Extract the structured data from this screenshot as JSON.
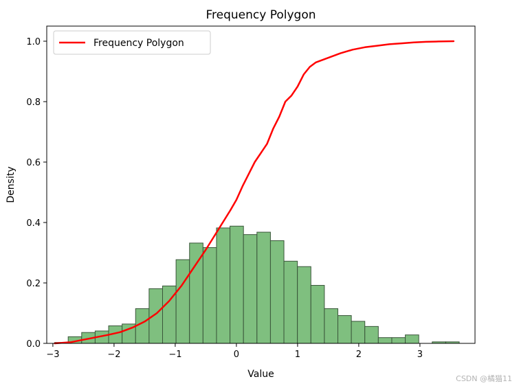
{
  "chart_data": {
    "type": "bar",
    "title": "Frequency Polygon",
    "xlabel": "Value",
    "ylabel": "Density",
    "xlim": [
      -3.1,
      3.9
    ],
    "ylim": [
      0,
      1.05
    ],
    "xticks": [
      -3,
      -2,
      -1,
      0,
      1,
      2,
      3
    ],
    "xtick_labels": [
      "−3",
      "−2",
      "−1",
      "0",
      "1",
      "2",
      "3"
    ],
    "yticks": [
      0.0,
      0.2,
      0.4,
      0.6,
      0.8,
      1.0
    ],
    "ytick_labels": [
      "0.0",
      "0.2",
      "0.4",
      "0.6",
      "0.8",
      "1.0"
    ],
    "grid": false,
    "legend": {
      "placement": "upper-left",
      "entries": [
        "Frequency Polygon"
      ]
    },
    "histogram": {
      "name": "",
      "color": "#7fbf7f",
      "edge_color": "#3a553a",
      "bin_width": 0.2204,
      "bin_starts": [
        -2.97,
        -2.7496,
        -2.5292,
        -2.3088,
        -2.0884,
        -1.868,
        -1.6476,
        -1.4272,
        -1.2068,
        -0.9864,
        -0.766,
        -0.5456,
        -0.3252,
        -0.1048,
        0.1156,
        0.336,
        0.5564,
        0.7768,
        0.9972,
        1.2176,
        1.438,
        1.6584,
        1.8788,
        2.0992,
        2.3196,
        2.54,
        2.7604,
        2.9808,
        3.2012,
        3.4216
      ],
      "values": [
        0.003,
        0.022,
        0.036,
        0.041,
        0.058,
        0.064,
        0.115,
        0.181,
        0.19,
        0.277,
        0.332,
        0.317,
        0.382,
        0.388,
        0.36,
        0.368,
        0.34,
        0.272,
        0.254,
        0.192,
        0.115,
        0.092,
        0.073,
        0.056,
        0.019,
        0.019,
        0.028,
        0.0,
        0.005,
        0.005
      ]
    },
    "series": [
      {
        "name": "Frequency Polygon",
        "type": "line",
        "color": "#ff0000",
        "x": [
          -2.97,
          -2.7,
          -2.5,
          -2.3,
          -2.1,
          -1.9,
          -1.7,
          -1.5,
          -1.3,
          -1.1,
          -0.9,
          -0.7,
          -0.5,
          -0.3,
          -0.1,
          0.0,
          0.1,
          0.3,
          0.5,
          0.6,
          0.7,
          0.8,
          0.9,
          1.0,
          1.1,
          1.2,
          1.3,
          1.5,
          1.7,
          1.9,
          2.1,
          2.3,
          2.5,
          2.7,
          2.9,
          3.1,
          3.3,
          3.55
        ],
        "values": [
          0.0,
          0.004,
          0.012,
          0.02,
          0.028,
          0.037,
          0.052,
          0.072,
          0.1,
          0.14,
          0.19,
          0.25,
          0.31,
          0.375,
          0.44,
          0.475,
          0.52,
          0.6,
          0.66,
          0.71,
          0.75,
          0.8,
          0.82,
          0.85,
          0.89,
          0.915,
          0.93,
          0.945,
          0.96,
          0.972,
          0.98,
          0.985,
          0.99,
          0.993,
          0.996,
          0.998,
          0.999,
          1.0
        ]
      }
    ]
  },
  "watermark_text": "CSDN @橘猫11"
}
